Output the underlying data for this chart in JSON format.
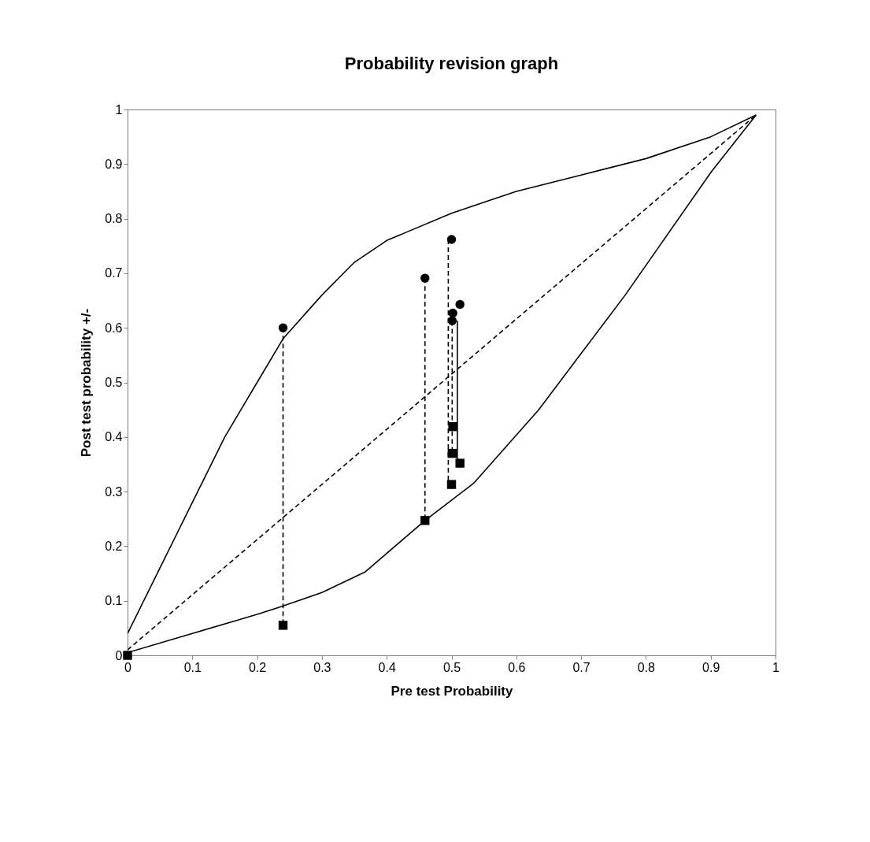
{
  "chart_data": {
    "type": "scatter",
    "title": "Probability revision graph",
    "xlabel": "Pre test Probability",
    "ylabel": "Post test probability +/-",
    "xlim": [
      0,
      1
    ],
    "ylim": [
      0,
      1
    ],
    "xticks": [
      0,
      0.1,
      0.2,
      0.3,
      0.4,
      0.5,
      0.6,
      0.7,
      0.8,
      0.9,
      1
    ],
    "yticks": [
      0,
      0.1,
      0.2,
      0.3,
      0.4,
      0.5,
      0.6,
      0.7,
      0.8,
      0.9,
      1
    ],
    "grid": false,
    "series": [
      {
        "type": "line",
        "color": "#000000",
        "line_style": "solid",
        "marker": "none",
        "x": [
          0,
          0.05,
          0.1,
          0.15,
          0.2,
          0.24,
          0.3,
          0.35,
          0.4,
          0.5,
          0.6,
          0.7,
          0.8,
          0.9,
          0.97
        ],
        "values": [
          0.04,
          0.16,
          0.28,
          0.4,
          0.5,
          0.58,
          0.66,
          0.72,
          0.76,
          0.81,
          0.85,
          0.88,
          0.91,
          0.95,
          0.99
        ]
      },
      {
        "type": "line",
        "color": "#000000",
        "line_style": "solid",
        "marker": "none",
        "x": [
          0,
          0.1,
          0.2,
          0.234,
          0.3,
          0.367,
          0.459,
          0.534,
          0.634,
          0.7,
          0.768,
          0.901,
          0.97
        ],
        "values": [
          0.005,
          0.04,
          0.075,
          0.088,
          0.115,
          0.153,
          0.247,
          0.315,
          0.449,
          0.553,
          0.66,
          0.886,
          0.99
        ]
      },
      {
        "type": "line",
        "color": "#000000",
        "line_style": "dashed",
        "marker": "none",
        "x": [
          0,
          0.97
        ],
        "values": [
          0.01,
          0.99
        ]
      },
      {
        "type": "line",
        "color": "#000000",
        "line_style": "dashed",
        "marker": "none",
        "x": [
          0.24,
          0.24
        ],
        "values": [
          0.6,
          0.055
        ]
      },
      {
        "type": "line",
        "color": "#000000",
        "line_style": "dashed",
        "marker": "none",
        "x": [
          0.459,
          0.459
        ],
        "values": [
          0.691,
          0.247
        ]
      },
      {
        "type": "line",
        "color": "#000000",
        "line_style": "dashed",
        "marker": "none",
        "x": [
          0.495,
          0.495
        ],
        "values": [
          0.762,
          0.313
        ]
      },
      {
        "type": "line",
        "color": "#000000",
        "line_style": "dashed",
        "marker": "none",
        "x": [
          0.501,
          0.501
        ],
        "values": [
          0.627,
          0.37
        ]
      },
      {
        "type": "line",
        "color": "#000000",
        "line_style": "solid",
        "marker": "none",
        "x": [
          0.509,
          0.509
        ],
        "values": [
          0.613,
          0.352
        ]
      },
      {
        "color": "#000000",
        "marker": "circle",
        "x": [
          0.24,
          0.459,
          0.5,
          0.513,
          0.502,
          0.501
        ],
        "values": [
          0.6,
          0.691,
          0.762,
          0.643,
          0.627,
          0.613
        ]
      },
      {
        "color": "#000000",
        "marker": "square",
        "x": [
          0,
          0.24,
          0.459,
          0.502,
          0.501,
          0.513,
          0.5
        ],
        "values": [
          0,
          0.055,
          0.247,
          0.419,
          0.37,
          0.352,
          0.313
        ]
      }
    ]
  }
}
